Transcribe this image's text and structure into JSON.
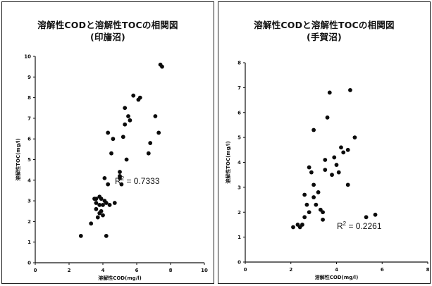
{
  "chart_data": [
    {
      "type": "scatter",
      "title": "溶解性CODと溶解性TOCの相関図",
      "subtitle": "(印旛沼)",
      "xlabel": "溶解性COD(mg/l)",
      "ylabel": "溶解性TOC(mg/l)",
      "xlim": [
        0,
        10
      ],
      "ylim": [
        0,
        10
      ],
      "x_ticks": [
        "0",
        "2",
        "4",
        "6",
        "8",
        "10"
      ],
      "y_ticks": [
        "0",
        "1",
        "2",
        "3",
        "4",
        "5",
        "6",
        "7",
        "8",
        "9",
        "10"
      ],
      "annotation": {
        "r2_label": "R",
        "r2_exp": "2",
        "r2_value": " = 0.7333"
      },
      "grid": false,
      "x": [
        2.7,
        3.3,
        3.5,
        3.6,
        3.6,
        3.6,
        3.7,
        3.8,
        3.8,
        3.8,
        3.9,
        3.9,
        4.0,
        4.0,
        4.1,
        4.1,
        4.2,
        4.2,
        4.3,
        4.3,
        4.4,
        4.5,
        4.6,
        4.7,
        5.0,
        5.0,
        5.0,
        5.1,
        5.2,
        5.3,
        5.3,
        5.4,
        5.5,
        5.6,
        5.8,
        6.1,
        6.2,
        6.7,
        6.8,
        7.1,
        7.3,
        7.4,
        7.5
      ],
      "y": [
        1.3,
        1.9,
        3.1,
        2.6,
        2.9,
        3.1,
        2.2,
        2.4,
        2.8,
        3.2,
        2.5,
        3.1,
        2.3,
        2.8,
        3.0,
        4.1,
        1.3,
        2.9,
        6.3,
        3.8,
        2.8,
        5.3,
        6.0,
        2.9,
        4.2,
        4.4,
        4.1,
        3.8,
        6.1,
        7.5,
        6.7,
        5.0,
        7.1,
        6.9,
        8.1,
        7.9,
        8.0,
        5.3,
        5.8,
        7.1,
        6.3,
        9.6,
        9.5
      ]
    },
    {
      "type": "scatter",
      "title": "溶解性CODと溶解性TOCの相関図",
      "subtitle": "(手賀沼)",
      "xlabel": "溶解性COD(mg/l)",
      "ylabel": "溶解性TOC(mg/l)",
      "xlim": [
        0,
        8
      ],
      "ylim": [
        0,
        8
      ],
      "x_ticks": [
        "0",
        "2",
        "4",
        "6",
        "8"
      ],
      "y_ticks": [
        "0",
        "1",
        "2",
        "3",
        "4",
        "5",
        "6",
        "7",
        "8"
      ],
      "annotation": {
        "r2_label": "R",
        "r2_exp": "2",
        "r2_value": " = 0.2261"
      },
      "grid": false,
      "x": [
        2.1,
        2.3,
        2.4,
        2.5,
        2.6,
        2.6,
        2.7,
        2.8,
        2.8,
        2.9,
        3.0,
        3.0,
        3.0,
        3.1,
        3.2,
        3.3,
        3.4,
        3.4,
        3.5,
        3.5,
        3.6,
        3.7,
        3.8,
        3.9,
        4.0,
        4.1,
        4.2,
        4.3,
        4.5,
        4.5,
        4.6,
        4.8,
        5.3,
        5.7
      ],
      "y": [
        1.4,
        1.5,
        1.4,
        1.5,
        1.8,
        2.7,
        2.3,
        2.0,
        3.8,
        3.6,
        2.6,
        3.1,
        5.3,
        2.3,
        2.8,
        2.1,
        2.0,
        1.7,
        3.7,
        4.1,
        5.8,
        6.8,
        3.5,
        4.2,
        3.9,
        3.6,
        4.6,
        4.4,
        4.5,
        3.1,
        6.9,
        5.0,
        1.8,
        1.9
      ]
    }
  ]
}
